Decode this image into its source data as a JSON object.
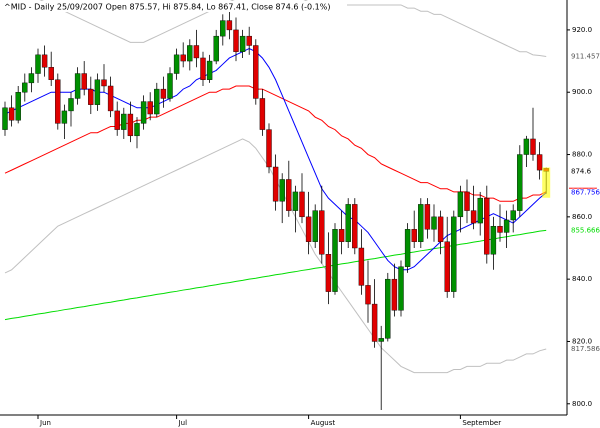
{
  "chart_data": {
    "type": "candlestick",
    "title": "^MID - Daily 25/09/2007 Open 875.57, Hi 875.84, Lo 867.41, Close 874.6 (-0.1%)",
    "categories": [
      null,
      null,
      null,
      null,
      null,
      "Jun",
      null,
      null,
      null,
      null,
      null,
      null,
      null,
      null,
      null,
      null,
      null,
      null,
      null,
      null,
      null,
      null,
      null,
      null,
      null,
      null,
      "Jul",
      null,
      null,
      null,
      null,
      null,
      null,
      null,
      null,
      null,
      null,
      null,
      null,
      null,
      null,
      null,
      null,
      null,
      null,
      null,
      "August",
      null,
      null,
      null,
      null,
      null,
      null,
      null,
      null,
      null,
      null,
      null,
      null,
      null,
      null,
      null,
      null,
      null,
      null,
      null,
      null,
      null,
      null,
      "September",
      null,
      null,
      null,
      null,
      null,
      null,
      null,
      null,
      null,
      null,
      null,
      null,
      null
    ],
    "open": [
      888,
      895,
      891,
      900,
      903,
      906,
      912,
      908,
      904,
      890,
      894,
      898,
      906,
      901,
      896,
      904,
      902,
      894,
      888,
      893,
      886,
      890,
      897,
      893,
      901,
      898,
      906,
      912,
      910,
      915,
      911,
      904,
      910,
      918,
      923,
      920,
      913,
      918,
      915,
      898,
      888,
      876,
      865,
      872,
      862,
      868,
      860,
      852,
      862,
      848,
      836,
      856,
      852,
      864,
      850,
      838,
      832,
      820,
      821,
      840,
      830,
      844,
      856,
      852,
      864,
      856,
      860,
      852,
      836,
      860,
      868,
      862,
      858,
      866,
      848,
      857,
      855,
      859,
      862,
      880,
      885,
      880,
      875.57
    ],
    "high": [
      897,
      899,
      902,
      906,
      908,
      914,
      915,
      913,
      906,
      896,
      900,
      908,
      910,
      905,
      906,
      909,
      905,
      897,
      895,
      897,
      892,
      899,
      900,
      903,
      905,
      908,
      914,
      916,
      917,
      920,
      913,
      912,
      920,
      925,
      926,
      924,
      920,
      921,
      917,
      901,
      890,
      880,
      874,
      878,
      870,
      874,
      868,
      864,
      870,
      855,
      858,
      862,
      866,
      866,
      856,
      846,
      840,
      825,
      842,
      845,
      846,
      858,
      862,
      866,
      866,
      864,
      862,
      860,
      862,
      870,
      872,
      870,
      868,
      870,
      860,
      864,
      862,
      864,
      883,
      886,
      895,
      884,
      875.84
    ],
    "low": [
      886,
      889,
      890,
      897,
      900,
      903,
      905,
      902,
      888,
      885,
      889,
      896,
      899,
      893,
      894,
      900,
      892,
      886,
      885,
      884,
      882,
      888,
      891,
      892,
      895,
      897,
      904,
      908,
      907,
      908,
      902,
      903,
      909,
      915,
      917,
      910,
      911,
      912,
      896,
      886,
      874,
      862,
      858,
      860,
      855,
      858,
      848,
      850,
      845,
      832,
      835,
      848,
      850,
      848,
      835,
      826,
      818,
      798,
      820,
      828,
      828,
      842,
      850,
      850,
      853,
      852,
      848,
      834,
      834,
      855,
      858,
      856,
      854,
      845,
      843,
      852,
      850,
      855,
      860,
      876,
      878,
      872,
      867.41
    ],
    "close": [
      895,
      891,
      900,
      903,
      906,
      912,
      908,
      904,
      890,
      894,
      898,
      906,
      901,
      896,
      904,
      902,
      894,
      888,
      893,
      886,
      890,
      897,
      893,
      901,
      898,
      906,
      912,
      910,
      915,
      911,
      904,
      910,
      918,
      923,
      920,
      913,
      918,
      915,
      898,
      888,
      876,
      865,
      872,
      862,
      868,
      860,
      852,
      862,
      848,
      836,
      856,
      852,
      864,
      850,
      838,
      832,
      820,
      821,
      840,
      830,
      844,
      856,
      852,
      864,
      856,
      860,
      852,
      836,
      860,
      868,
      862,
      858,
      866,
      848,
      857,
      855,
      859,
      862,
      880,
      885,
      880,
      875,
      874.6
    ],
    "up_color": "#009000",
    "down_color": "#e00000",
    "lines": [
      {
        "color": "#c0c0c0",
        "values": [
          935,
          934,
          933,
          932,
          931,
          930,
          929,
          928,
          927,
          926,
          925,
          924,
          923,
          922,
          921,
          920,
          919,
          918,
          917,
          916,
          916,
          916,
          917,
          918,
          919,
          920,
          921,
          922,
          923,
          924,
          925,
          926,
          927,
          928,
          929,
          930,
          931,
          932,
          932,
          932,
          932,
          932,
          931,
          931,
          930,
          930,
          929,
          929,
          928,
          928,
          928,
          928,
          928,
          928,
          928,
          928,
          928,
          928,
          928,
          928,
          928,
          927,
          927,
          926,
          926,
          925,
          925,
          924,
          923,
          922,
          921,
          920,
          919,
          918,
          917,
          916,
          915,
          914,
          913,
          913,
          912,
          911.8,
          911.457
        ]
      },
      {
        "color": "#c0c0c0",
        "values": [
          842,
          843,
          845,
          847,
          849,
          851,
          853,
          855,
          857,
          858,
          859,
          860,
          861,
          862,
          863,
          864,
          865,
          866,
          867,
          868,
          869,
          870,
          871,
          872,
          873,
          874,
          875,
          876,
          877,
          878,
          879,
          880,
          881,
          882,
          883,
          884,
          885,
          884,
          882,
          879,
          876,
          872,
          868,
          864,
          860,
          856,
          852,
          848,
          845,
          842,
          839,
          836,
          833,
          830,
          827,
          824,
          821,
          818,
          816,
          814,
          812,
          811,
          810,
          810,
          810,
          810,
          810,
          810,
          811,
          811,
          812,
          812,
          812,
          813,
          813,
          813,
          814,
          814,
          815,
          816,
          816,
          817,
          817.586
        ]
      },
      {
        "color": "#00dd00",
        "values": [
          827.0,
          827.4,
          827.7,
          828.1,
          828.4,
          828.8,
          829.1,
          829.5,
          829.8,
          830.2,
          830.5,
          830.9,
          831.2,
          831.6,
          831.9,
          832.3,
          832.6,
          833.0,
          833.3,
          833.7,
          834.0,
          834.4,
          834.7,
          835.1,
          835.4,
          835.8,
          836.1,
          836.5,
          836.8,
          837.2,
          837.5,
          837.9,
          838.2,
          838.6,
          838.9,
          839.3,
          839.6,
          840.0,
          840.3,
          840.7,
          841.0,
          841.4,
          841.7,
          842.1,
          842.4,
          842.8,
          843.1,
          843.5,
          843.8,
          844.2,
          844.5,
          844.9,
          845.2,
          845.6,
          845.9,
          846.3,
          846.6,
          847.0,
          847.3,
          847.7,
          848.0,
          848.4,
          848.7,
          849.1,
          849.4,
          849.8,
          850.1,
          850.5,
          850.8,
          851.2,
          851.5,
          851.9,
          852.2,
          852.6,
          852.9,
          853.3,
          853.6,
          854.0,
          854.3,
          854.7,
          855.0,
          855.4,
          855.666
        ]
      },
      {
        "color": "#ff0000",
        "values": [
          874,
          875,
          876,
          877,
          878,
          879,
          880,
          881,
          882,
          883,
          884,
          885,
          886,
          887,
          887,
          888,
          889,
          889,
          890,
          890,
          891,
          891,
          892,
          892,
          893,
          894,
          895,
          896,
          897,
          898,
          899,
          900,
          900,
          901,
          901,
          902,
          902,
          902,
          901,
          901,
          900,
          899,
          898,
          897,
          896,
          895,
          894,
          892,
          891,
          889,
          888,
          886,
          885,
          883,
          882,
          880,
          879,
          877,
          876,
          875,
          874,
          873,
          872,
          871,
          871,
          870,
          869,
          869,
          868,
          868,
          868,
          867,
          867,
          866,
          866,
          865,
          865,
          865,
          866,
          866,
          867,
          867,
          868.062
        ]
      },
      {
        "color": "#0000ff",
        "values": [
          893,
          894,
          895,
          896,
          897,
          898,
          899,
          900,
          900,
          900,
          900,
          901,
          901,
          901,
          900,
          900,
          899,
          898,
          897,
          896,
          895,
          895,
          895,
          896,
          897,
          898,
          899,
          901,
          902,
          904,
          905,
          906,
          907,
          909,
          911,
          912,
          913,
          914,
          913,
          911,
          908,
          904,
          899,
          894,
          889,
          884,
          879,
          874,
          869,
          866,
          864,
          862,
          860,
          859,
          857,
          855,
          852,
          849,
          846,
          844,
          843,
          843,
          844,
          846,
          848,
          850,
          852,
          854,
          855,
          856,
          857,
          858,
          859,
          860,
          861,
          860,
          859,
          858,
          860,
          862,
          864,
          866,
          867.756
        ]
      }
    ],
    "ylim": [
      796.4,
      929.6
    ],
    "yticks": [
      {
        "value": 800,
        "label": "800.0"
      },
      {
        "value": 820,
        "label": "820.0"
      },
      {
        "value": 840,
        "label": "840.0"
      },
      {
        "value": 860,
        "label": "860.0"
      },
      {
        "value": 880,
        "label": "880.0"
      },
      {
        "value": 900,
        "label": "900.0"
      },
      {
        "value": 920,
        "label": "920.0"
      }
    ]
  }
}
